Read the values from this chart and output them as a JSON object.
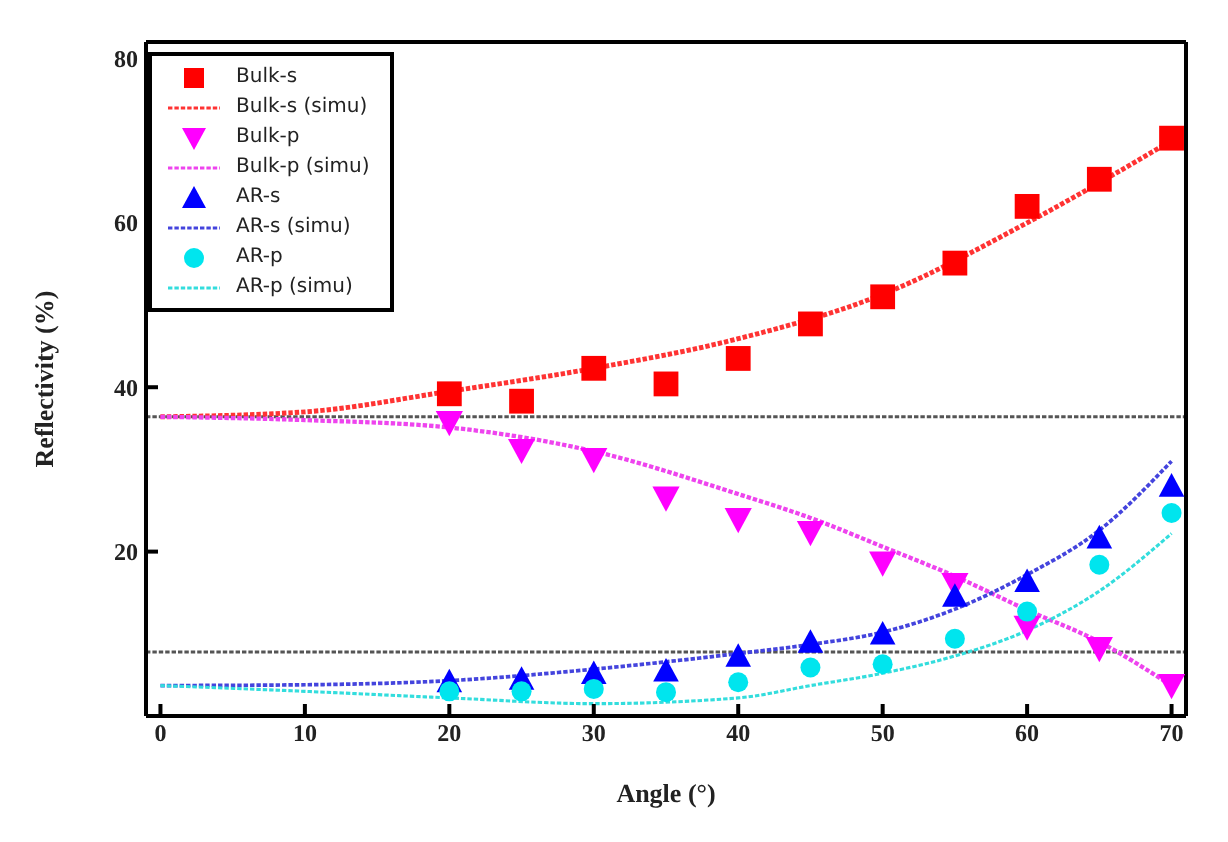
{
  "chart_data": {
    "type": "scatter",
    "xlabel": "Angle (°)",
    "ylabel": "Reflectivity (%)",
    "xlim": [
      -1,
      71
    ],
    "ylim": [
      0,
      82
    ],
    "xticks": [
      0,
      10,
      20,
      30,
      40,
      50,
      60,
      70
    ],
    "yticks": [
      20,
      40,
      60,
      80
    ],
    "grid": false,
    "legend": "top left",
    "series": [
      {
        "name": "Bulk-s",
        "marker": "square",
        "color": "#ff0000",
        "x": [
          20,
          25,
          30,
          35,
          40,
          45,
          50,
          55,
          60,
          65,
          70
        ],
        "values": [
          39.2,
          38.3,
          42.3,
          40.4,
          43.5,
          47.7,
          51.0,
          55.1,
          62.0,
          65.3,
          70.3
        ]
      },
      {
        "name": "Bulk-s (simu)",
        "type": "line",
        "line_style": "dotted",
        "color": "#ff3333",
        "x": [
          0,
          10,
          20,
          30,
          40,
          50,
          60,
          70
        ],
        "values": [
          36.4,
          37,
          39.5,
          42.3,
          45.9,
          51.3,
          60,
          70
        ]
      },
      {
        "name": "Bulk-p",
        "marker": "triangle_down",
        "color": "#ff00ff",
        "x": [
          20,
          25,
          30,
          35,
          40,
          45,
          50,
          55,
          60,
          65,
          70
        ],
        "values": [
          35.7,
          32.3,
          31.2,
          26.5,
          23.9,
          22.3,
          18.6,
          16.0,
          10.8,
          8.2,
          3.7
        ]
      },
      {
        "name": "Bulk-p (simu)",
        "type": "line",
        "line_style": "dotted",
        "color": "#ee44ee",
        "x": [
          0,
          10,
          20,
          30,
          40,
          45,
          50,
          55,
          60,
          65,
          70
        ],
        "values": [
          36.4,
          36,
          35.1,
          32.2,
          27,
          24.1,
          20.6,
          17,
          12.9,
          9,
          3.7
        ]
      },
      {
        "name": "AR-s",
        "marker": "triangle",
        "color": "#0000ff",
        "x": [
          20,
          25,
          30,
          35,
          40,
          45,
          50,
          55,
          60,
          65,
          70
        ],
        "values": [
          4.2,
          4.5,
          5.2,
          5.5,
          7.3,
          9.0,
          10.0,
          14.6,
          16.4,
          21.7,
          28.0
        ]
      },
      {
        "name": "AR-s (simu)",
        "type": "line",
        "line_style": "dotted",
        "color": "#4444dd",
        "x": [
          0,
          10,
          20,
          30,
          40,
          45,
          50,
          55,
          60,
          65,
          70
        ],
        "values": [
          3.7,
          3.8,
          4.3,
          5.7,
          7.6,
          8.7,
          10.2,
          13,
          17.2,
          22.6,
          31
        ]
      },
      {
        "name": "AR-p",
        "marker": "circle",
        "color": "#00e5ee",
        "x": [
          20,
          25,
          30,
          35,
          40,
          45,
          50,
          55,
          60,
          65,
          70
        ],
        "values": [
          3.0,
          3.0,
          3.3,
          2.9,
          4.1,
          5.9,
          6.3,
          9.4,
          12.7,
          18.4,
          24.7
        ]
      },
      {
        "name": "AR-p (simu)",
        "type": "line",
        "line_style": "dotted",
        "color": "#33dddd",
        "x": [
          0,
          10,
          20,
          30,
          40,
          45,
          50,
          55,
          60,
          65,
          70
        ],
        "values": [
          3.7,
          3.0,
          2.2,
          1.5,
          2.2,
          3.7,
          5.2,
          7.3,
          10.4,
          15.2,
          22.2
        ]
      }
    ],
    "ref_lines": [
      {
        "axis": "y",
        "value": 36.4,
        "color": "#555555",
        "line_style": "dotted"
      },
      {
        "axis": "y",
        "value": 7.8,
        "color": "#555555",
        "line_style": "dotted"
      }
    ]
  }
}
